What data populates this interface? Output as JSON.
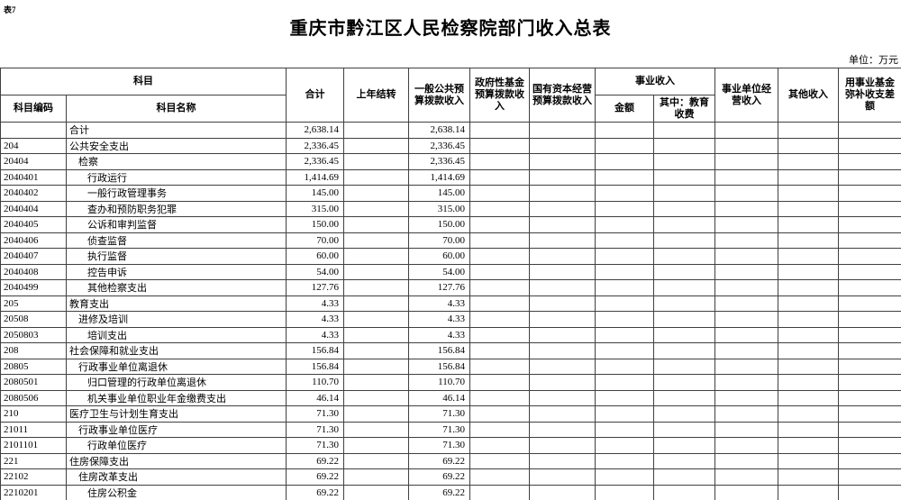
{
  "page": {
    "table_label": "表7",
    "title": "重庆市黔江区人民检察院部门收入总表",
    "unit_note": "单位：万元"
  },
  "table": {
    "header": {
      "subject_group": "科目",
      "subject_code": "科目编码",
      "subject_name": "科目名称",
      "total": "合计",
      "carryover": "上年结转",
      "general_budget": "一般公共预算拨款收入",
      "gov_fund": "政府性基金预算拨款收入",
      "state_capital": "国有资本经营预算拨款收入",
      "business_income_group": "事业收入",
      "business_amount": "金额",
      "education_fee": "其中：教育收费",
      "business_operating": "事业单位经营收入",
      "other_income": "其他收入",
      "fund_balance": "用事业基金弥补收支差额"
    },
    "rows": [
      {
        "code": "",
        "name": "合计",
        "indent": 0,
        "total": "2,638.14",
        "general": "2,638.14"
      },
      {
        "code": "204",
        "name": "公共安全支出",
        "indent": 0,
        "total": "2,336.45",
        "general": "2,336.45"
      },
      {
        "code": "20404",
        "name": "检察",
        "indent": 1,
        "total": "2,336.45",
        "general": "2,336.45"
      },
      {
        "code": "2040401",
        "name": "行政运行",
        "indent": 2,
        "total": "1,414.69",
        "general": "1,414.69"
      },
      {
        "code": "2040402",
        "name": "一般行政管理事务",
        "indent": 2,
        "total": "145.00",
        "general": "145.00"
      },
      {
        "code": "2040404",
        "name": "查办和预防职务犯罪",
        "indent": 2,
        "total": "315.00",
        "general": "315.00"
      },
      {
        "code": "2040405",
        "name": "公诉和审判监督",
        "indent": 2,
        "total": "150.00",
        "general": "150.00"
      },
      {
        "code": "2040406",
        "name": "侦查监督",
        "indent": 2,
        "total": "70.00",
        "general": "70.00"
      },
      {
        "code": "2040407",
        "name": "执行监督",
        "indent": 2,
        "total": "60.00",
        "general": "60.00"
      },
      {
        "code": "2040408",
        "name": "控告申诉",
        "indent": 2,
        "total": "54.00",
        "general": "54.00"
      },
      {
        "code": "2040499",
        "name": "其他检察支出",
        "indent": 2,
        "total": "127.76",
        "general": "127.76"
      },
      {
        "code": "205",
        "name": "教育支出",
        "indent": 0,
        "total": "4.33",
        "general": "4.33"
      },
      {
        "code": "20508",
        "name": "进修及培训",
        "indent": 1,
        "total": "4.33",
        "general": "4.33"
      },
      {
        "code": "2050803",
        "name": "培训支出",
        "indent": 2,
        "total": "4.33",
        "general": "4.33"
      },
      {
        "code": "208",
        "name": "社会保障和就业支出",
        "indent": 0,
        "total": "156.84",
        "general": "156.84"
      },
      {
        "code": "20805",
        "name": "行政事业单位离退休",
        "indent": 1,
        "total": "156.84",
        "general": "156.84"
      },
      {
        "code": "2080501",
        "name": "归口管理的行政单位离退休",
        "indent": 2,
        "total": "110.70",
        "general": "110.70"
      },
      {
        "code": "2080506",
        "name": "机关事业单位职业年金缴费支出",
        "indent": 2,
        "total": "46.14",
        "general": "46.14"
      },
      {
        "code": "210",
        "name": "医疗卫生与计划生育支出",
        "indent": 0,
        "total": "71.30",
        "general": "71.30"
      },
      {
        "code": "21011",
        "name": "行政事业单位医疗",
        "indent": 1,
        "total": "71.30",
        "general": "71.30"
      },
      {
        "code": "2101101",
        "name": "行政单位医疗",
        "indent": 2,
        "total": "71.30",
        "general": "71.30"
      },
      {
        "code": "221",
        "name": "住房保障支出",
        "indent": 0,
        "total": "69.22",
        "general": "69.22"
      },
      {
        "code": "22102",
        "name": "住房改革支出",
        "indent": 1,
        "total": "69.22",
        "general": "69.22"
      },
      {
        "code": "2210201",
        "name": "住房公积金",
        "indent": 2,
        "total": "69.22",
        "general": "69.22"
      }
    ]
  }
}
